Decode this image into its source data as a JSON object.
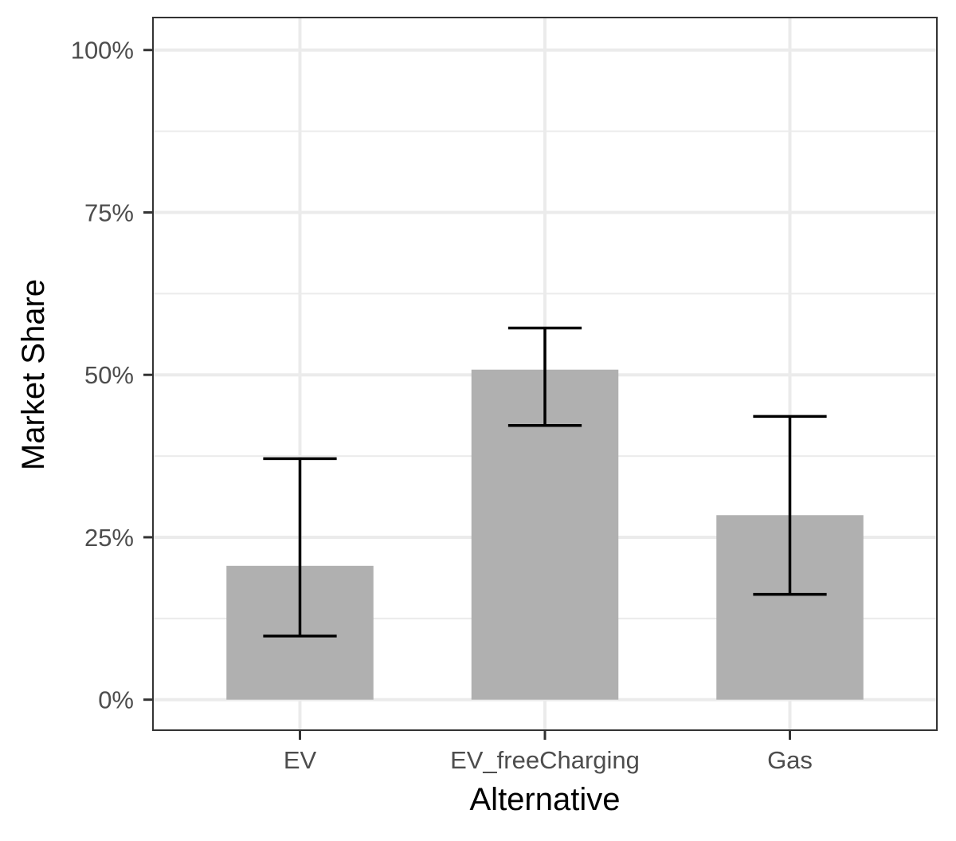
{
  "chart_data": {
    "type": "bar",
    "title": "",
    "xlabel": "Alternative",
    "ylabel": "Market Share",
    "categories": [
      "EV",
      "EV_freeCharging",
      "Gas"
    ],
    "values": [
      0.206,
      0.508,
      0.284
    ],
    "error_low": [
      0.098,
      0.422,
      0.162
    ],
    "error_high": [
      0.371,
      0.572,
      0.436
    ],
    "ylim": [
      -0.047,
      1.05
    ],
    "yticks": [
      0,
      0.25,
      0.5,
      0.75,
      1.0
    ],
    "ytick_labels": [
      "0%",
      "25%",
      "50%",
      "75%",
      "100%"
    ],
    "minor_yticks": [
      0.125,
      0.375,
      0.625,
      0.875
    ],
    "grid": true,
    "legend": "none",
    "colors": {
      "bar": "#b0b0b0",
      "errorbar": "#000000",
      "grid": "#ebebeb",
      "panel_border": "#333333",
      "tick": "#333333"
    }
  }
}
